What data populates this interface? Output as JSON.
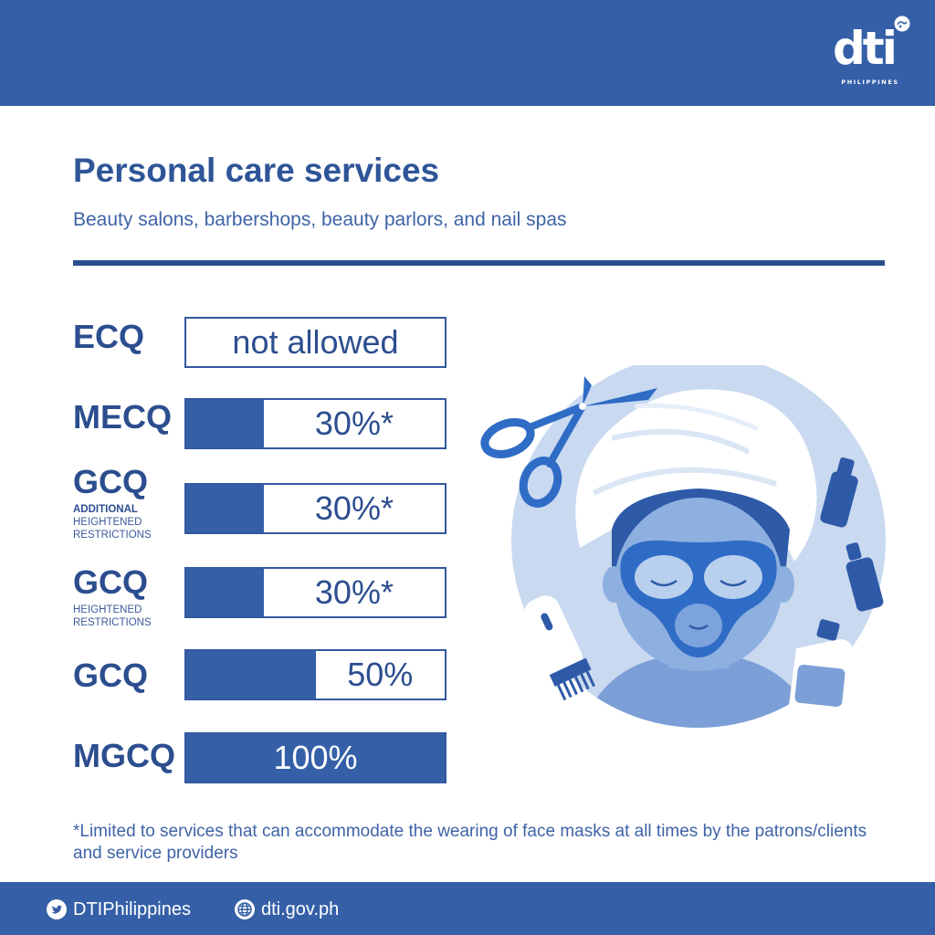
{
  "brand": {
    "logo_text": "dti",
    "logo_subtext": "PHILIPPINES"
  },
  "colors": {
    "primary_blue": "#3560a8",
    "title_blue": "#2e5597",
    "light_blue": "#c9d9f0"
  },
  "title": "Personal care services",
  "subtitle": "Beauty salons, barbershops, beauty parlors, and nail spas",
  "rows": [
    {
      "label": "ECQ",
      "sublabel_strong": "",
      "sublabel": "",
      "value_text": "not allowed",
      "capacity_percent": 0
    },
    {
      "label": "MECQ",
      "sublabel_strong": "",
      "sublabel": "",
      "value_text": "30%*",
      "capacity_percent": 30
    },
    {
      "label": "GCQ",
      "sublabel_strong": "ADDITIONAL",
      "sublabel": "HEIGHTENED RESTRICTIONS",
      "value_text": "30%*",
      "capacity_percent": 30
    },
    {
      "label": "GCQ",
      "sublabel_strong": "",
      "sublabel": "HEIGHTENED RESTRICTIONS",
      "value_text": "30%*",
      "capacity_percent": 30
    },
    {
      "label": "GCQ",
      "sublabel_strong": "",
      "sublabel": "",
      "value_text": "50%",
      "capacity_percent": 50
    },
    {
      "label": "MGCQ",
      "sublabel_strong": "",
      "sublabel": "",
      "value_text": "100%",
      "capacity_percent": 100
    }
  ],
  "footnote": "*Limited to services that can accommodate the wearing of face masks at all times by the patrons/clients and service providers",
  "footer": {
    "twitter_handle": "DTIPhilippines",
    "website": "dti.gov.ph",
    "twitter_icon": "twitter-icon",
    "globe_icon": "globe-icon"
  }
}
